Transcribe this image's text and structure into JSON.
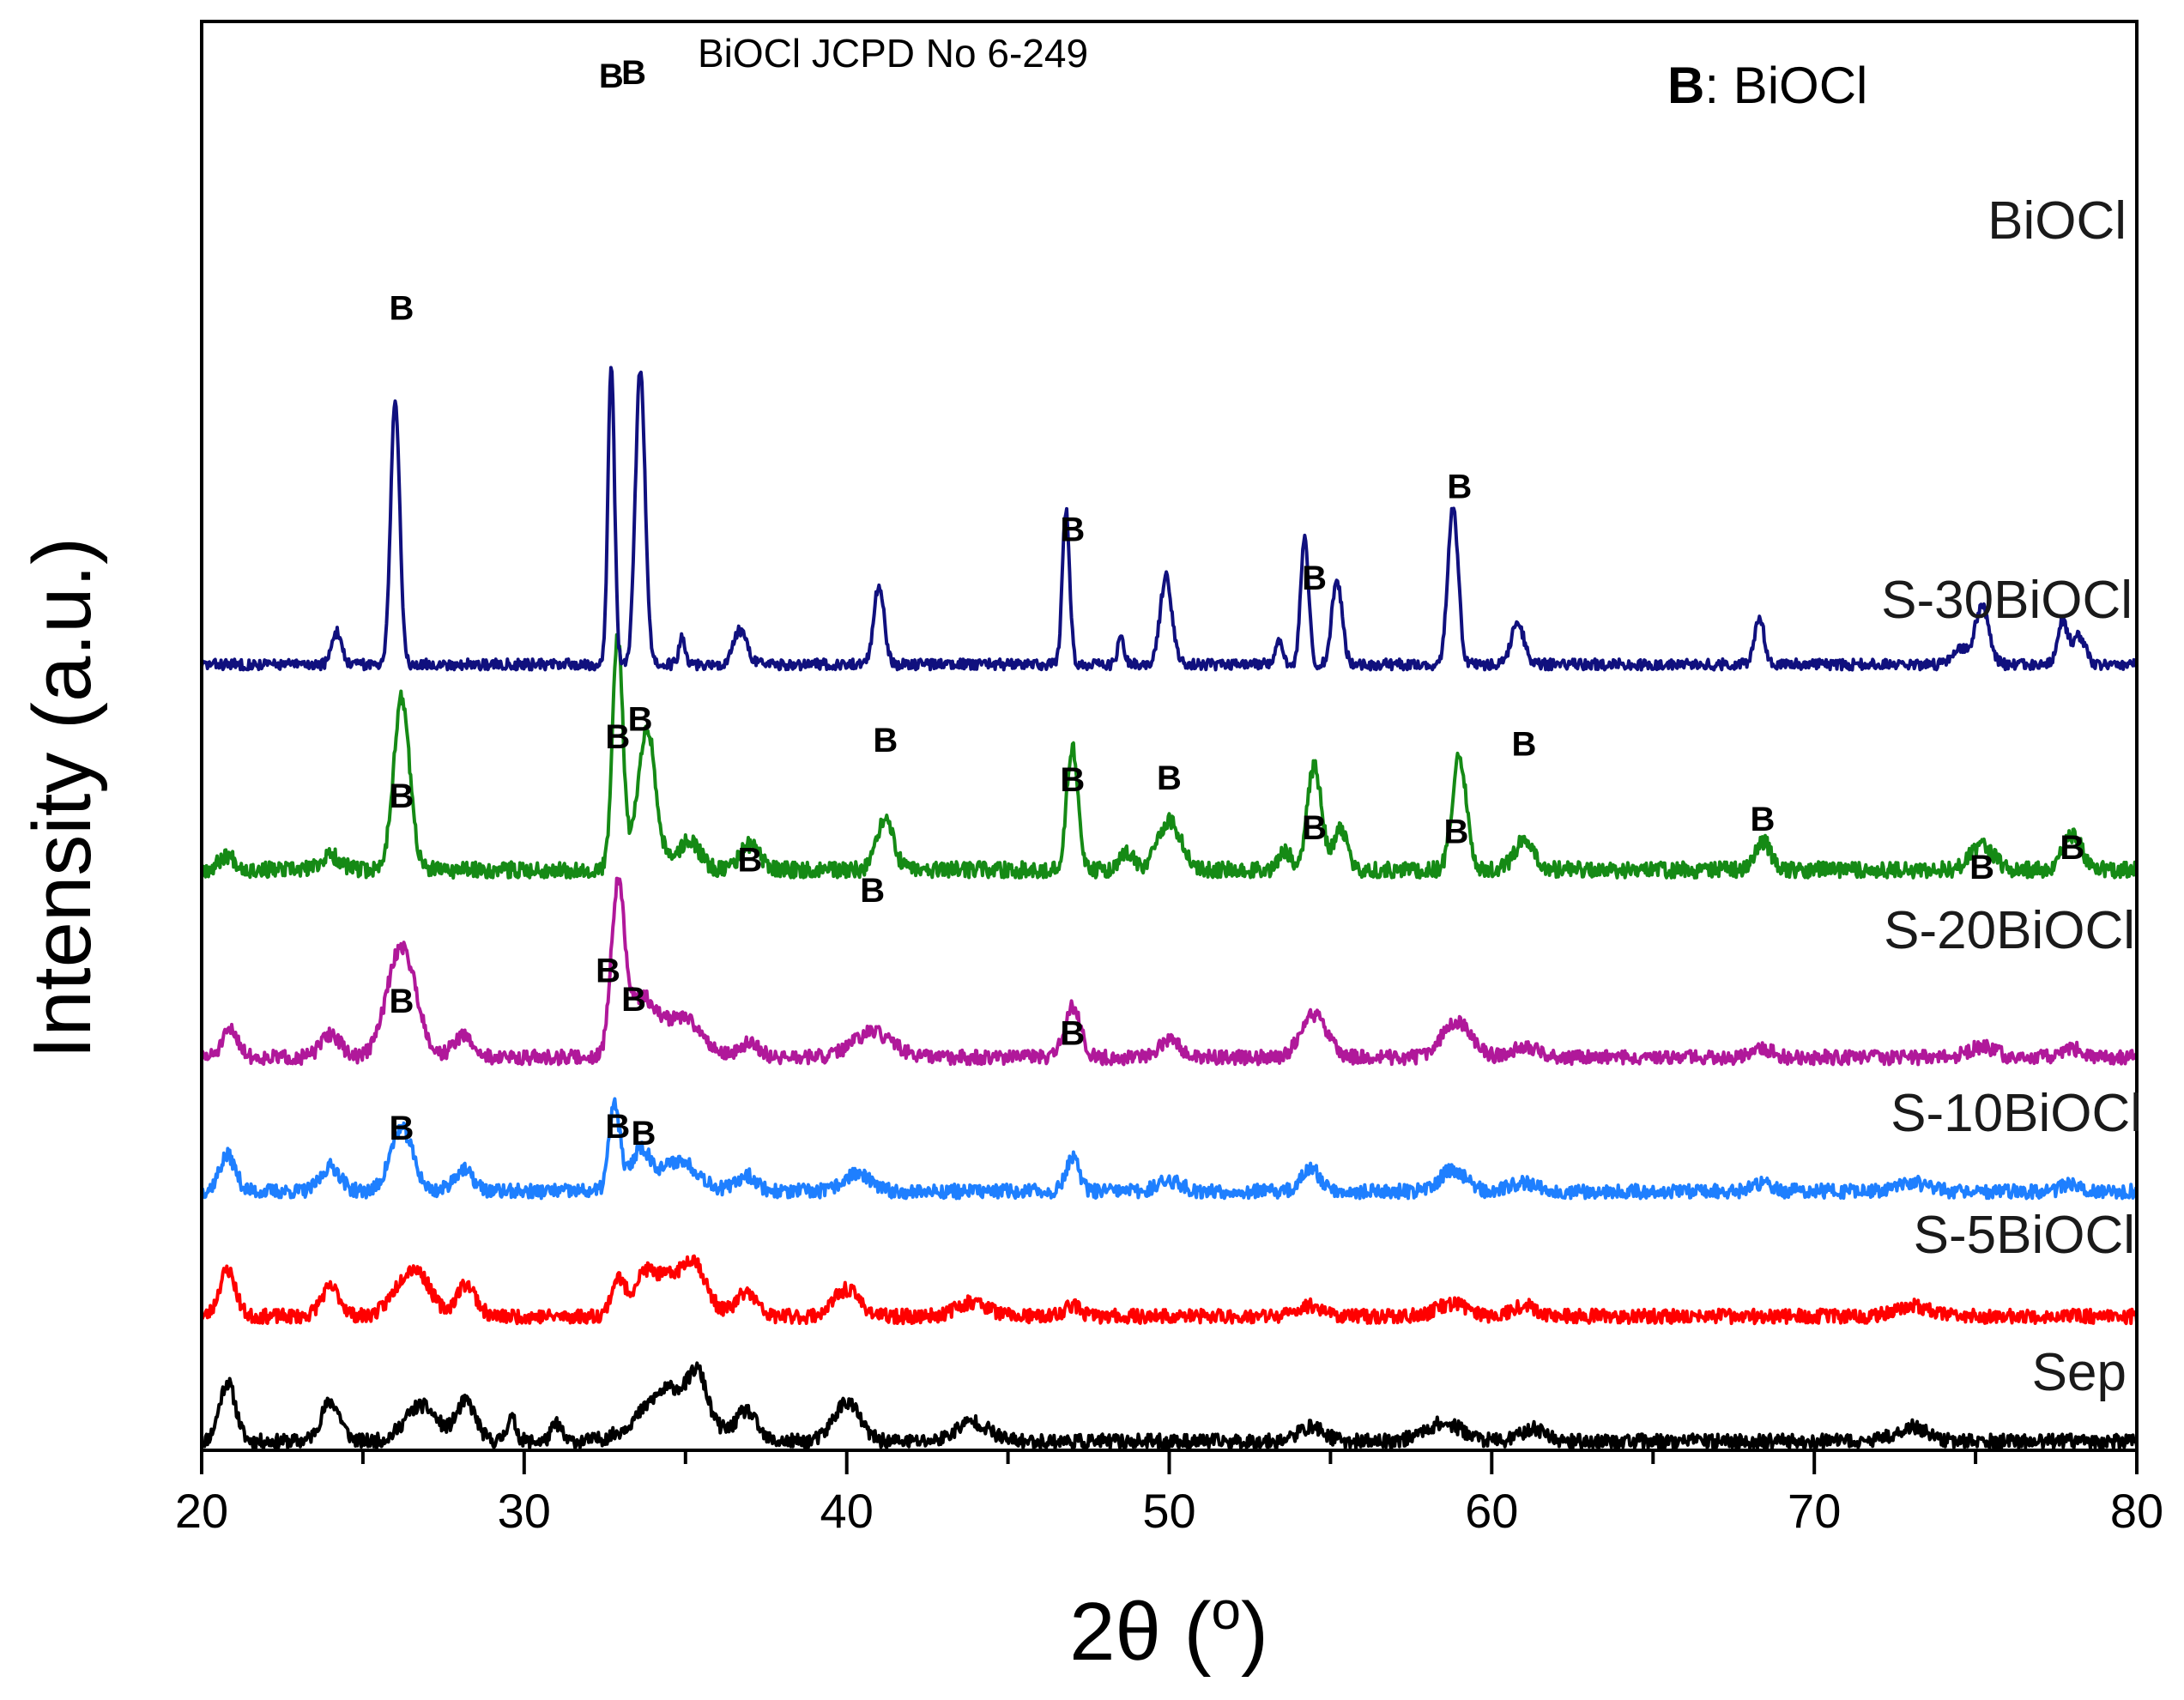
{
  "chart_data": {
    "type": "line",
    "title": "",
    "xlabel": "2θ (°)",
    "xlabel_main": "2θ (",
    "xlabel_degree": "o",
    "xlabel_close": ")",
    "ylabel": "Intensity (a.u.)",
    "xlim": [
      20,
      80
    ],
    "x_ticks": [
      20,
      30,
      40,
      50,
      60,
      70,
      80
    ],
    "x_tick_labels": [
      "20",
      "30",
      "40",
      "50",
      "60",
      "70",
      "80"
    ],
    "y_ticks_shown": false,
    "annotation": "BiOCl JCPD No 6-249",
    "legend_key": {
      "letter": "B",
      "text": ": BiOCl"
    },
    "series": [
      {
        "name": "Sep",
        "color": "#000000",
        "baseline": 0.5,
        "noise": 0.8,
        "seed": 11,
        "peaks": [
          [
            20.8,
            3.3,
            0.25
          ],
          [
            24.0,
            2.2,
            0.3
          ],
          [
            26.8,
            2.0,
            0.5
          ],
          [
            28.2,
            2.2,
            0.3
          ],
          [
            29.6,
            1.3,
            0.15
          ],
          [
            31.0,
            1.0,
            0.15
          ],
          [
            34.6,
            3.0,
            0.9
          ],
          [
            35.4,
            2.0,
            0.25
          ],
          [
            36.9,
            1.6,
            0.3
          ],
          [
            40.0,
            2.2,
            0.4
          ],
          [
            43.9,
            1.1,
            0.5
          ],
          [
            54.4,
            0.8,
            0.4
          ],
          [
            58.5,
            1.0,
            0.6
          ],
          [
            61.3,
            0.7,
            0.4
          ],
          [
            73.0,
            0.8,
            0.5
          ]
        ]
      },
      {
        "name": "S-5BiOCl",
        "color": "#ff0000",
        "baseline": 7.5,
        "noise": 0.8,
        "seed": 23,
        "peaks": [
          [
            20.8,
            2.6,
            0.25
          ],
          [
            24.0,
            1.6,
            0.3
          ],
          [
            26.3,
            1.7,
            0.45
          ],
          [
            26.8,
            1.5,
            0.4
          ],
          [
            28.2,
            1.8,
            0.3
          ],
          [
            32.9,
            1.9,
            0.2
          ],
          [
            33.7,
            1.3,
            0.3
          ],
          [
            34.6,
            2.3,
            0.8
          ],
          [
            35.3,
            1.6,
            0.3
          ],
          [
            36.9,
            1.3,
            0.3
          ],
          [
            40.0,
            1.5,
            0.4
          ],
          [
            43.9,
            0.8,
            0.5
          ],
          [
            47.0,
            0.6,
            0.25
          ],
          [
            54.4,
            0.6,
            0.4
          ],
          [
            58.8,
            0.7,
            0.5
          ],
          [
            61.0,
            0.6,
            0.4
          ],
          [
            73.0,
            0.6,
            0.5
          ]
        ]
      },
      {
        "name": "S-10BiOCl",
        "color": "#1e7fff",
        "baseline": 14.5,
        "noise": 0.8,
        "seed": 37,
        "peaks": [
          [
            20.8,
            2.0,
            0.25
          ],
          [
            24.0,
            1.4,
            0.3
          ],
          [
            26.2,
            3.5,
            0.35
          ],
          [
            28.1,
            1.2,
            0.3
          ],
          [
            32.8,
            4.8,
            0.17
          ],
          [
            33.6,
            2.2,
            0.3
          ],
          [
            34.8,
            1.7,
            0.6
          ],
          [
            36.9,
            0.9,
            0.3
          ],
          [
            40.3,
            1.0,
            0.4
          ],
          [
            47.0,
            1.9,
            0.2
          ],
          [
            50.0,
            0.6,
            0.35
          ],
          [
            54.4,
            1.2,
            0.3
          ],
          [
            58.8,
            1.2,
            0.4
          ],
          [
            61.0,
            0.5,
            0.4
          ],
          [
            68.4,
            0.4,
            0.3
          ],
          [
            73.0,
            0.5,
            0.5
          ],
          [
            78.0,
            0.4,
            0.3
          ]
        ]
      },
      {
        "name": "S-20BiOCl",
        "color": "#b0189a",
        "baseline": 22.0,
        "noise": 0.8,
        "seed": 51,
        "peaks": [
          [
            20.9,
            1.5,
            0.25
          ],
          [
            24.0,
            1.3,
            0.3
          ],
          [
            26.2,
            6.2,
            0.45
          ],
          [
            28.1,
            1.2,
            0.3
          ],
          [
            32.9,
            9.0,
            0.2
          ],
          [
            33.6,
            3.2,
            0.45
          ],
          [
            34.9,
            2.2,
            0.6
          ],
          [
            37.0,
            0.8,
            0.3
          ],
          [
            40.8,
            1.4,
            0.6
          ],
          [
            47.0,
            2.8,
            0.25
          ],
          [
            50.0,
            0.9,
            0.35
          ],
          [
            54.5,
            2.4,
            0.4
          ],
          [
            58.9,
            2.0,
            0.45
          ],
          [
            61.0,
            0.6,
            0.4
          ],
          [
            68.4,
            0.5,
            0.3
          ],
          [
            75.2,
            0.6,
            0.4
          ],
          [
            78.0,
            0.5,
            0.3
          ]
        ]
      },
      {
        "name": "S-30BiOCl",
        "color": "#158a15",
        "baseline": 32.5,
        "noise": 0.9,
        "seed": 67,
        "peaks": [
          [
            20.8,
            0.8,
            0.25
          ],
          [
            24.0,
            0.8,
            0.3
          ],
          [
            26.2,
            9.6,
            0.25
          ],
          [
            32.9,
            13.0,
            0.16
          ],
          [
            33.8,
            8.0,
            0.28
          ],
          [
            35.1,
            1.6,
            0.35
          ],
          [
            37.0,
            1.4,
            0.3
          ],
          [
            41.2,
            2.8,
            0.25
          ],
          [
            47.0,
            6.8,
            0.18
          ],
          [
            48.7,
            1.0,
            0.2
          ],
          [
            50.0,
            2.8,
            0.35
          ],
          [
            53.6,
            1.0,
            0.2
          ],
          [
            54.5,
            5.8,
            0.22
          ],
          [
            55.3,
            2.2,
            0.22
          ],
          [
            59.0,
            6.4,
            0.22
          ],
          [
            61.0,
            1.6,
            0.3
          ],
          [
            68.4,
            1.6,
            0.25
          ],
          [
            75.2,
            1.4,
            0.35
          ],
          [
            78.0,
            1.9,
            0.3
          ]
        ]
      },
      {
        "name": "BiOCl",
        "color": "#10107e",
        "baseline": 44.0,
        "noise": 0.6,
        "seed": 83,
        "peaks": [
          [
            24.2,
            1.8,
            0.15
          ],
          [
            26.0,
            14.8,
            0.14
          ],
          [
            32.7,
            17.0,
            0.1
          ],
          [
            33.6,
            16.5,
            0.15
          ],
          [
            34.9,
            1.5,
            0.1
          ],
          [
            36.7,
            1.9,
            0.2
          ],
          [
            41.0,
            4.4,
            0.16
          ],
          [
            46.8,
            8.7,
            0.11
          ],
          [
            48.5,
            1.5,
            0.1
          ],
          [
            49.9,
            4.9,
            0.18
          ],
          [
            53.4,
            1.3,
            0.1
          ],
          [
            54.2,
            7.2,
            0.12
          ],
          [
            55.2,
            4.7,
            0.16
          ],
          [
            58.8,
            8.8,
            0.16
          ],
          [
            60.8,
            2.3,
            0.2
          ],
          [
            68.3,
            2.6,
            0.15
          ],
          [
            74.5,
            0.9,
            0.2
          ],
          [
            75.2,
            3.3,
            0.22
          ],
          [
            77.7,
            2.4,
            0.15
          ],
          [
            78.2,
            1.6,
            0.2
          ]
        ]
      }
    ],
    "series_labels": [
      "Sep",
      "S-5BiOCl",
      "S-10BiOCl",
      "S-20BiOCl",
      "S-30BiOCl",
      "BiOCl"
    ],
    "peak_markers": [
      {
        "text": "B",
        "x": 26.2,
        "y": 63.3
      },
      {
        "text": "B",
        "x": 32.7,
        "y": 76.3
      },
      {
        "text": "B",
        "x": 33.4,
        "y": 76.5
      },
      {
        "text": "B",
        "x": 37.0,
        "y": 32.4
      },
      {
        "text": "B",
        "x": 41.2,
        "y": 39.1
      },
      {
        "text": "B",
        "x": 47.0,
        "y": 50.9
      },
      {
        "text": "B",
        "x": 50.0,
        "y": 37.0
      },
      {
        "text": "B",
        "x": 54.5,
        "y": 48.2
      },
      {
        "text": "B",
        "x": 59.0,
        "y": 53.3
      },
      {
        "text": "B",
        "x": 61.0,
        "y": 38.9
      },
      {
        "text": "B",
        "x": 68.4,
        "y": 34.7
      },
      {
        "text": "B",
        "x": 75.2,
        "y": 32.0
      },
      {
        "text": "B",
        "x": 78.0,
        "y": 33.1
      },
      {
        "text": "B",
        "x": 26.2,
        "y": 36.0
      },
      {
        "text": "B",
        "x": 32.9,
        "y": 39.3
      },
      {
        "text": "B",
        "x": 33.6,
        "y": 40.3
      },
      {
        "text": "B",
        "x": 40.8,
        "y": 30.7
      },
      {
        "text": "B",
        "x": 47.0,
        "y": 36.9
      },
      {
        "text": "B",
        "x": 54.5,
        "y": 34.2
      },
      {
        "text": "B",
        "x": 58.9,
        "y": 34.0
      },
      {
        "text": "B",
        "x": 26.2,
        "y": 24.5
      },
      {
        "text": "B",
        "x": 32.6,
        "y": 26.2
      },
      {
        "text": "B",
        "x": 33.4,
        "y": 24.6
      },
      {
        "text": "B",
        "x": 47.0,
        "y": 22.7
      },
      {
        "text": "B",
        "x": 26.2,
        "y": 17.4
      },
      {
        "text": "B",
        "x": 32.9,
        "y": 17.5
      },
      {
        "text": "B",
        "x": 33.7,
        "y": 17.1
      }
    ]
  },
  "colors": {
    "axis": "#000000",
    "background": "#ffffff"
  }
}
